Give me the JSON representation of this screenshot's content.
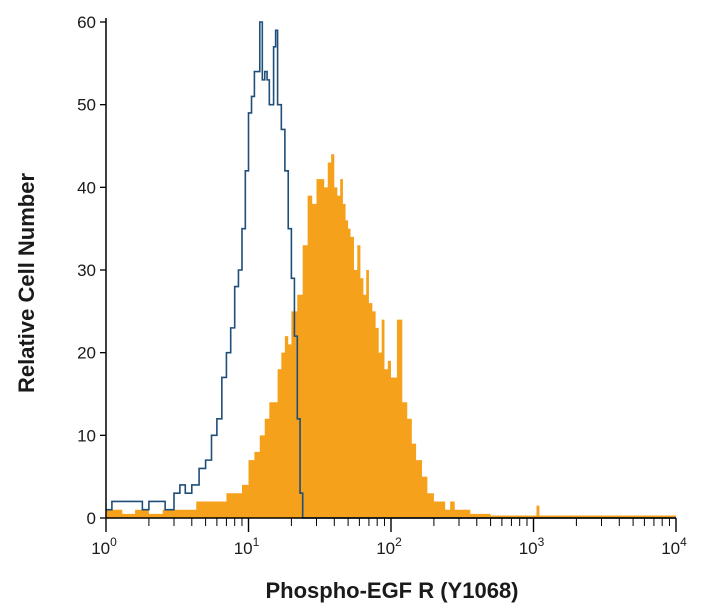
{
  "chart_data": {
    "type": "area",
    "xscale": "log",
    "xlim": [
      1,
      10000
    ],
    "ylim": [
      0,
      60
    ],
    "xlabel": "Phospho-EGF R (Y1068)",
    "ylabel": "Relative Cell Number",
    "x_ticks": [
      {
        "value": 1,
        "base": "10",
        "exp": "0"
      },
      {
        "value": 10,
        "base": "10",
        "exp": "1"
      },
      {
        "value": 100,
        "base": "10",
        "exp": "2"
      },
      {
        "value": 1000,
        "base": "10",
        "exp": "3"
      },
      {
        "value": 10000,
        "base": "10",
        "exp": "4"
      }
    ],
    "y_ticks": [
      0,
      10,
      20,
      30,
      40,
      50,
      60
    ],
    "grid": false,
    "colors": {
      "outline_series": "#1f4e79",
      "filled_series": "#f5a11c",
      "axis": "#000000"
    },
    "series": [
      {
        "style": "outline",
        "x": [
          1.0,
          1.1,
          1.3,
          1.5,
          1.8,
          2.0,
          2.3,
          2.6,
          3.0,
          3.3,
          3.6,
          4.0,
          4.5,
          5.0,
          5.5,
          6.0,
          6.5,
          7.0,
          7.5,
          8.0,
          8.5,
          9.0,
          9.5,
          10.0,
          10.5,
          11.0,
          11.5,
          12.0,
          12.5,
          13.0,
          13.5,
          14.0,
          15.0,
          15.5,
          16.0,
          17.0,
          18.0,
          19.0,
          20.0,
          21.0,
          22.0,
          23.0,
          24.0
        ],
        "y": [
          1,
          2,
          2,
          2,
          1,
          2,
          2,
          1,
          3,
          4,
          3,
          4,
          6,
          7,
          10,
          12,
          17,
          20,
          23,
          28,
          30,
          35,
          42,
          49,
          51,
          54,
          54,
          60,
          53,
          54,
          53,
          50,
          57,
          59,
          50,
          47,
          42,
          35,
          29,
          22,
          12,
          3,
          0
        ]
      },
      {
        "style": "filled",
        "x": [
          1.0,
          1.3,
          1.6,
          2.0,
          2.5,
          3.0,
          3.6,
          4.3,
          5.0,
          6.0,
          7.0,
          8.0,
          9.0,
          10.0,
          11.0,
          12.0,
          13.0,
          14.0,
          15.0,
          16.0,
          17.0,
          18.0,
          19.0,
          20.0,
          22.0,
          24.0,
          26.0,
          28.0,
          30.0,
          32.0,
          34.0,
          36.0,
          38.0,
          40.0,
          42.0,
          44.0,
          46.0,
          48.0,
          50.0,
          52.0,
          55.0,
          58.0,
          61.0,
          64.0,
          67.0,
          70.0,
          74.0,
          78.0,
          82.0,
          86.0,
          90.0,
          95.0,
          100.0,
          110.0,
          120.0,
          130.0,
          140.0,
          150.0,
          165.0,
          180.0,
          200.0,
          220.0,
          240.0,
          260.0,
          280.0,
          300.0,
          330.0,
          360.0,
          400.0,
          450.0,
          500.0,
          600.0,
          800.0,
          1000.0,
          1050.0,
          1100.0,
          1300.0,
          2000.0,
          5000.0,
          10000.0
        ],
        "y": [
          1,
          0.5,
          1,
          0.5,
          1,
          1,
          1,
          2,
          2,
          2,
          3,
          3,
          4,
          7,
          8,
          10,
          12,
          14,
          14,
          18,
          20,
          22,
          21,
          25,
          27,
          33,
          39,
          38,
          41,
          41,
          40,
          43,
          44,
          40,
          39,
          41,
          38,
          36,
          35,
          34,
          30,
          33,
          29,
          27,
          30,
          26,
          25,
          23,
          20,
          24,
          18,
          19,
          17,
          24,
          14,
          12,
          9,
          7,
          5,
          3,
          2,
          2,
          1,
          2,
          1,
          1,
          1,
          0.5,
          0.5,
          0.5,
          0.3,
          0.3,
          0.3,
          0.3,
          1.5,
          0.3,
          0.3,
          0.3,
          0.3,
          0.3
        ]
      }
    ]
  }
}
